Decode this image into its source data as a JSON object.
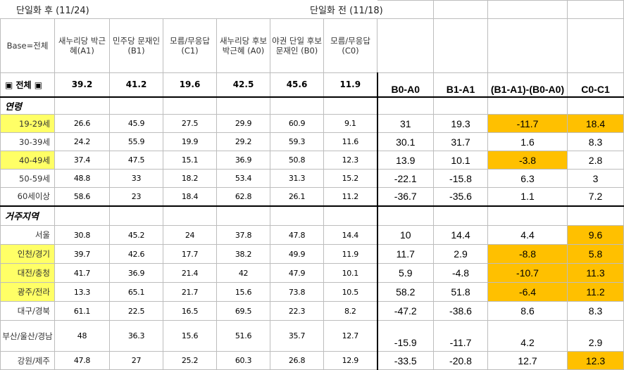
{
  "header": {
    "after_label": "단일화 후 (11/24)",
    "before_label": "단일화 전 (11/18)",
    "base_label": "Base=전체",
    "cols": [
      "새누리당 박근혜(A1)",
      "민주당 문재인(B1)",
      "모름/무응답 (C1)",
      "새누리당 후보 박근혜 (A0)",
      "야권 단일 후보 문재인 (B0)",
      "모름/무응답 (C0)"
    ],
    "diff_cols": [
      "B0-A0",
      "B1-A1",
      "(B1-A1)-(B0-A0)",
      "C0-C1"
    ]
  },
  "total": {
    "label": "▣ 전체 ▣",
    "values": [
      "39.2",
      "41.2",
      "19.6",
      "42.5",
      "45.6",
      "11.9"
    ]
  },
  "sections": [
    {
      "title": "연령",
      "rows": [
        {
          "label": "19-29세",
          "values": [
            "26.6",
            "45.9",
            "27.5",
            "29.9",
            "60.9",
            "9.1"
          ],
          "diffs": [
            "31",
            "19.3",
            "-11.7",
            "18.4"
          ]
        },
        {
          "label": "30-39세",
          "values": [
            "24.2",
            "55.9",
            "19.9",
            "29.2",
            "59.3",
            "11.6"
          ],
          "diffs": [
            "30.1",
            "31.7",
            "1.6",
            "8.3"
          ]
        },
        {
          "label": "40-49세",
          "values": [
            "37.4",
            "47.5",
            "15.1",
            "36.9",
            "50.8",
            "12.3"
          ],
          "diffs": [
            "13.9",
            "10.1",
            "-3.8",
            "2.8"
          ]
        },
        {
          "label": "50-59세",
          "values": [
            "48.8",
            "33",
            "18.2",
            "53.4",
            "31.3",
            "15.2"
          ],
          "diffs": [
            "-22.1",
            "-15.8",
            "6.3",
            "3"
          ]
        },
        {
          "label": "60세이상",
          "values": [
            "58.6",
            "23",
            "18.4",
            "62.8",
            "26.1",
            "11.2"
          ],
          "diffs": [
            "-36.7",
            "-35.6",
            "1.1",
            "7.2"
          ]
        }
      ]
    },
    {
      "title": "거주지역",
      "rows": [
        {
          "label": "서울",
          "values": [
            "30.8",
            "45.2",
            "24",
            "37.8",
            "47.8",
            "14.4"
          ],
          "diffs": [
            "10",
            "14.4",
            "4.4",
            "9.6"
          ]
        },
        {
          "label": "인천/경기",
          "values": [
            "39.7",
            "42.6",
            "17.7",
            "38.2",
            "49.9",
            "11.9"
          ],
          "diffs": [
            "11.7",
            "2.9",
            "-8.8",
            "5.8"
          ]
        },
        {
          "label": "대전/충청",
          "values": [
            "41.7",
            "36.9",
            "21.4",
            "42",
            "47.9",
            "10.1"
          ],
          "diffs": [
            "5.9",
            "-4.8",
            "-10.7",
            "11.3"
          ]
        },
        {
          "label": "광주/전라",
          "values": [
            "13.3",
            "65.1",
            "21.7",
            "15.6",
            "73.8",
            "10.5"
          ],
          "diffs": [
            "58.2",
            "51.8",
            "-6.4",
            "11.2"
          ]
        },
        {
          "label": "대구/경북",
          "values": [
            "61.1",
            "22.5",
            "16.5",
            "69.5",
            "22.3",
            "8.2"
          ],
          "diffs": [
            "-47.2",
            "-38.6",
            "8.6",
            "8.3"
          ]
        },
        {
          "label": "부산/울산/경남",
          "values": [
            "48",
            "36.3",
            "15.6",
            "51.6",
            "35.7",
            "12.7"
          ],
          "diffs": [
            "-15.9",
            "-11.7",
            "4.2",
            "2.9"
          ]
        },
        {
          "label": "강원/제주",
          "values": [
            "47.8",
            "27",
            "25.2",
            "60.3",
            "26.8",
            "12.9"
          ],
          "diffs": [
            "-33.5",
            "-20.8",
            "12.7",
            "12.3"
          ]
        }
      ]
    }
  ],
  "highlight_colors": {
    "yellow": "#ffff66",
    "orange": "#ffc000"
  }
}
